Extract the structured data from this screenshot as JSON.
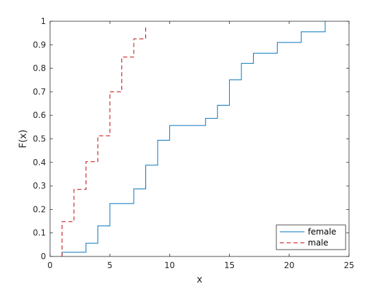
{
  "chart_data": {
    "type": "line",
    "subtype": "empirical-cdf-stairs",
    "title": "",
    "xlabel": "x",
    "ylabel": "F(x)",
    "xlim": [
      0,
      25
    ],
    "ylim": [
      0,
      1
    ],
    "xticks": [
      "0",
      "5",
      "10",
      "15",
      "20",
      "25"
    ],
    "yticks": [
      "0",
      "0.1",
      "0.2",
      "0.3",
      "0.4",
      "0.5",
      "0.6",
      "0.7",
      "0.8",
      "0.9",
      "1"
    ],
    "grid": false,
    "legend": {
      "position": "bottom-right",
      "entries": [
        "female",
        "male"
      ]
    },
    "series": [
      {
        "name": "female",
        "color": "#0072BD",
        "style": "solid",
        "x": [
          1,
          3,
          4,
          5,
          7,
          8,
          9,
          10,
          13,
          14,
          15,
          16,
          17,
          19,
          21,
          23
        ],
        "y": [
          0.018,
          0.056,
          0.13,
          0.225,
          0.287,
          0.388,
          0.494,
          0.557,
          0.587,
          0.643,
          0.751,
          0.821,
          0.864,
          0.91,
          0.955,
          1.0
        ]
      },
      {
        "name": "male",
        "color": "#C00000",
        "style": "dashed",
        "x": [
          1,
          2,
          3,
          4,
          5,
          6,
          7,
          8
        ],
        "y": [
          0.148,
          0.285,
          0.403,
          0.513,
          0.7,
          0.848,
          0.925,
          0.98
        ]
      }
    ]
  }
}
